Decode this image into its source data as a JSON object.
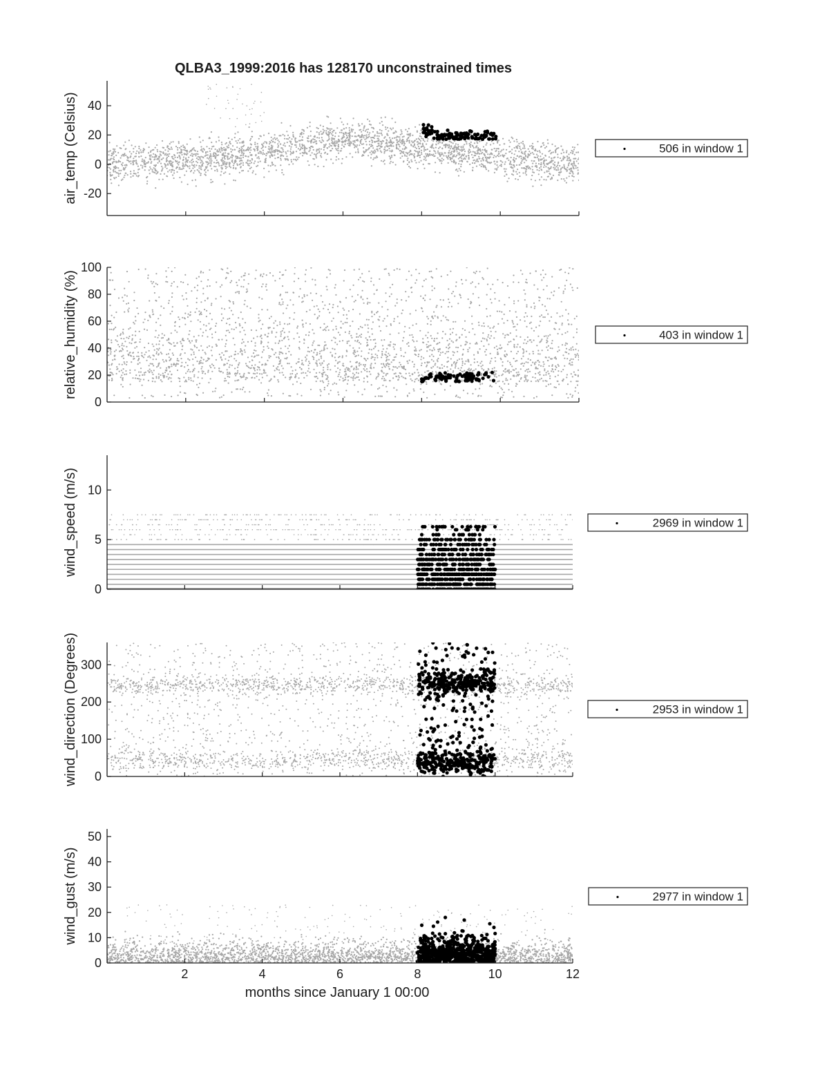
{
  "figure": {
    "title": "QLBA3_1999:2016 has 128170 unconstrained times",
    "xlabel": "months since January 1 00:00"
  },
  "colors": {
    "background_points": "#a6a6a6",
    "window_points": "#000000",
    "axes": "#1a1a1a"
  },
  "chart_data": [
    {
      "type": "scatter",
      "ylabel": "air_temp (Celsius)",
      "xlim": [
        0,
        12
      ],
      "ylim": [
        -35,
        57
      ],
      "yticks": [
        "-20",
        "0",
        "20",
        "40"
      ],
      "xticks": [],
      "grid": false,
      "legend": {
        "text": "506 in window 1",
        "placement": "right-outside"
      },
      "series": [
        {
          "name": "",
          "role": "all",
          "x_range": [
            0,
            12
          ],
          "y_band_center": [
            [
              0,
              0
            ],
            [
              3,
              5
            ],
            [
              6,
              17
            ],
            [
              8,
              12
            ],
            [
              10,
              5
            ],
            [
              12,
              0
            ]
          ],
          "y_spread": 14
        },
        {
          "name": "506 in window 1",
          "role": "window",
          "x_range": [
            8.0,
            9.9
          ],
          "y_range": [
            16,
            27
          ],
          "count": 506
        }
      ]
    },
    {
      "type": "scatter",
      "ylabel": "relative_humidity (%)",
      "xlim": [
        0,
        12
      ],
      "ylim": [
        0,
        100
      ],
      "yticks": [
        "0",
        "20",
        "40",
        "60",
        "80",
        "100"
      ],
      "xticks": [],
      "grid": false,
      "legend": {
        "text": "403 in window 1",
        "placement": "right-outside"
      },
      "series": [
        {
          "name": "",
          "role": "all",
          "x_range": [
            0,
            12
          ],
          "y_range": [
            3,
            100
          ]
        },
        {
          "name": "403 in window 1",
          "role": "window",
          "x_range": [
            8.0,
            9.9
          ],
          "y_range": [
            15,
            22
          ],
          "count": 403
        }
      ]
    },
    {
      "type": "scatter",
      "ylabel": "wind_speed (m/s)",
      "xlim": [
        0,
        12
      ],
      "ylim": [
        0,
        13.5
      ],
      "yticks": [
        "0",
        "5",
        "10"
      ],
      "xticks": [],
      "grid": false,
      "legend": {
        "text": "2969 in window 1",
        "placement": "right-outside"
      },
      "series": [
        {
          "name": "",
          "role": "all",
          "x_range": [
            0,
            12
          ],
          "y_levels_max": 7.7
        },
        {
          "name": "2969 in window 1",
          "role": "window",
          "x_range": [
            8.0,
            10.0
          ],
          "y_range": [
            0,
            6.3
          ],
          "count": 2969
        }
      ]
    },
    {
      "type": "scatter",
      "ylabel": "wind_direction (Degrees)",
      "xlim": [
        0,
        12
      ],
      "ylim": [
        0,
        360
      ],
      "yticks": [
        "0",
        "100",
        "200",
        "300"
      ],
      "xticks": [],
      "grid": false,
      "legend": {
        "text": "2953 in window 1",
        "placement": "right-outside"
      },
      "series": [
        {
          "name": "",
          "role": "all",
          "x_range": [
            0,
            12
          ],
          "y_range": [
            0,
            360
          ],
          "dense_bands": [
            45,
            245
          ]
        },
        {
          "name": "2953 in window 1",
          "role": "window",
          "x_range": [
            8.0,
            10.0
          ],
          "y_range": [
            0,
            360
          ],
          "count": 2953
        }
      ]
    },
    {
      "type": "scatter",
      "ylabel": "wind_gust (m/s)",
      "xlim": [
        0,
        12
      ],
      "ylim": [
        0,
        53
      ],
      "yticks": [
        "0",
        "10",
        "20",
        "30",
        "40",
        "50"
      ],
      "xticks": [
        "2",
        "4",
        "6",
        "8",
        "10",
        "12"
      ],
      "grid": false,
      "legend": {
        "text": "2977 in window 1",
        "placement": "right-outside"
      },
      "series": [
        {
          "name": "",
          "role": "all",
          "x_range": [
            0,
            12
          ],
          "y_range": [
            0,
            23
          ]
        },
        {
          "name": "2977 in window 1",
          "role": "window",
          "x_range": [
            8.0,
            10.0
          ],
          "y_range": [
            0,
            18
          ],
          "count": 2977
        }
      ]
    }
  ]
}
